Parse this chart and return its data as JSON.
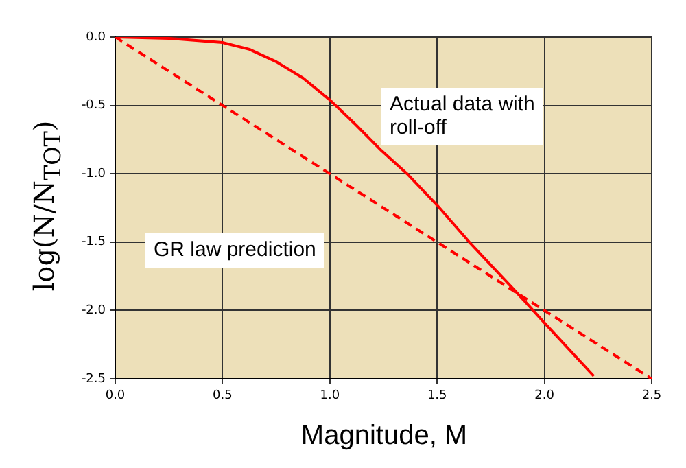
{
  "chart_data": {
    "type": "line",
    "xlabel": "Magnitude, M",
    "ylabel": "log(N/N$_{TOT}$)",
    "series": [
      {
        "color": "#ff0000",
        "line_style": "solid",
        "x": [
          0,
          0.25,
          0.5,
          0.625,
          0.75,
          0.875,
          1.0,
          1.12,
          1.24,
          1.36,
          1.5,
          1.65,
          1.86,
          2.0,
          2.23
        ],
        "values": [
          0,
          -0.01,
          -0.04,
          -0.09,
          -0.18,
          -0.3,
          -0.46,
          -0.64,
          -0.83,
          -1.0,
          -1.23,
          -1.5,
          -1.85,
          -2.09,
          -2.48
        ]
      },
      {
        "color": "#ff0000",
        "line_style": "dashed",
        "x": [
          0,
          2.5
        ],
        "values": [
          0,
          -2.5
        ]
      }
    ],
    "xlim": [
      0,
      2.5
    ],
    "ylim": [
      -2.5,
      0
    ],
    "xticks": [
      {
        "value": 0,
        "label": "0.0"
      },
      0.5,
      {
        "value": 1,
        "label": "1.0"
      },
      1.5,
      {
        "value": 2,
        "label": "2.0"
      },
      2.5
    ],
    "yticks": [
      {
        "value": -2.5,
        "label": "-2.5"
      },
      {
        "value": -2,
        "label": "-2.0"
      },
      {
        "value": -1.5,
        "label": "-1.5"
      },
      {
        "value": -1,
        "label": "-1.0"
      },
      {
        "value": -0.5,
        "label": "-0.5"
      },
      {
        "value": 0,
        "label": "0.0"
      }
    ],
    "grid": true,
    "legend": false,
    "marker": "none",
    "annotations": [
      "Actual data with roll-off",
      "GR law prediction"
    ]
  }
}
